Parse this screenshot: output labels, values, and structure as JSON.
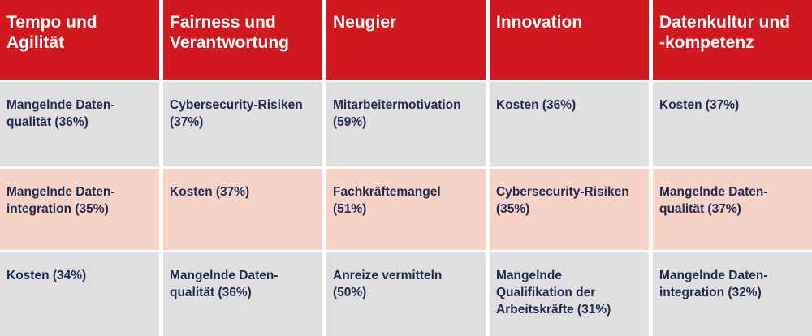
{
  "headers": [
    [
      "Tempo und",
      "Agilität"
    ],
    [
      "Fairness und",
      "Verantwortung"
    ],
    [
      "Neugier"
    ],
    [
      "Innovation"
    ],
    [
      "Datenkultur und",
      "-kompetenz"
    ]
  ],
  "rows": [
    [
      [
        "Mangelnde Daten-",
        "qualität (36%)"
      ],
      [
        "Cybersecurity-Risiken",
        "(37%)"
      ],
      [
        "Mitarbeitermotivation",
        "(59%)"
      ],
      [
        "Kosten (36%)"
      ],
      [
        "Kosten (37%)"
      ]
    ],
    [
      [
        "Mangelnde Daten-",
        "integration (35%)"
      ],
      [
        "Kosten (37%)"
      ],
      [
        "Fachkräftemangel",
        "(51%)"
      ],
      [
        "Cybersecurity-Risiken",
        "(35%)"
      ],
      [
        "Mangelnde Daten-",
        "qualität (37%)"
      ]
    ],
    [
      [
        "Kosten (34%)"
      ],
      [
        "Mangelnde Daten-",
        "qualität (36%)"
      ],
      [
        "Anreize vermitteln",
        "(50%)"
      ],
      [
        "Mangelnde",
        "Qualifikation der",
        "Arbeitskräfte (31%)"
      ],
      [
        "Mangelnde Daten-",
        "integration (32%)"
      ]
    ]
  ],
  "colors": {
    "header_bg": "#d0191f",
    "header_text": "#ffffff",
    "row_gray": "#e0dedf",
    "row_pink": "#f6d3c6",
    "cell_text": "#1f2a52"
  }
}
